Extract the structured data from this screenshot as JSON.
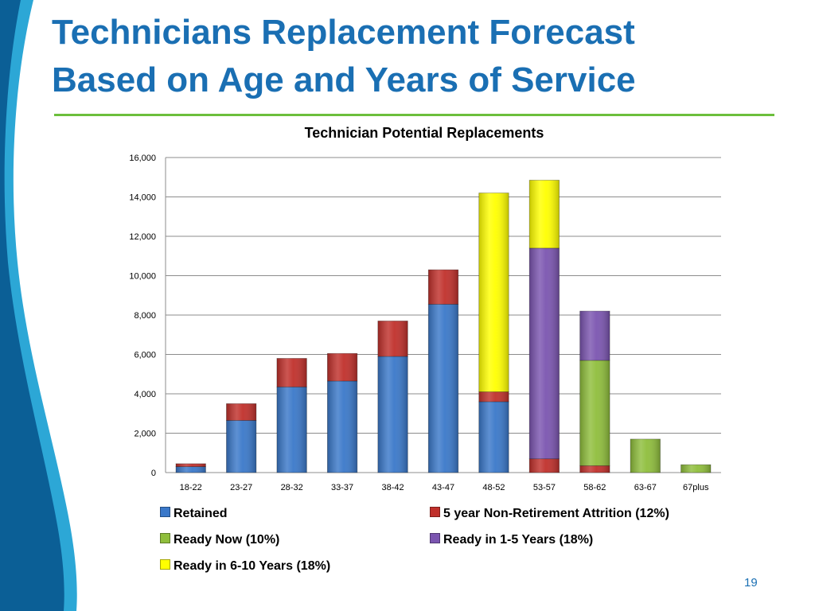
{
  "slide": {
    "title_line1": "Technicians Replacement Forecast",
    "title_line2": "Based on Age and Years of Service",
    "page_number": "19",
    "colors": {
      "title": "#1a6fb3",
      "rule": "#6cbf3c",
      "wave_dark": "#0b5f96",
      "wave_light": "#2ca7d6"
    }
  },
  "chart_data": {
    "type": "bar",
    "stacked": true,
    "title": "Technician Potential Replacements",
    "xlabel": "",
    "ylabel": "",
    "ylim": [
      0,
      16000
    ],
    "yticks": [
      0,
      2000,
      4000,
      6000,
      8000,
      10000,
      12000,
      14000,
      16000
    ],
    "ytick_labels": [
      "0",
      "2,000",
      "4,000",
      "6,000",
      "8,000",
      "10,000",
      "12,000",
      "14,000",
      "16,000"
    ],
    "grid": true,
    "legend_position": "bottom",
    "categories": [
      "18-22",
      "23-27",
      "28-32",
      "33-37",
      "38-42",
      "43-47",
      "48-52",
      "53-57",
      "58-62",
      "63-67",
      "67plus"
    ],
    "series": [
      {
        "name": "Retained",
        "color": "#3a78c9",
        "values": [
          300,
          2650,
          4350,
          4650,
          5900,
          8550,
          3600,
          0,
          0,
          0,
          0
        ]
      },
      {
        "name": "5 year Non-Retirement Attrition (12%)",
        "color": "#c0302b",
        "values": [
          150,
          850,
          1450,
          1400,
          1800,
          1750,
          500,
          700,
          350,
          0,
          0
        ]
      },
      {
        "name": "Ready Now (10%)",
        "color": "#8fbe3c",
        "values": [
          0,
          0,
          0,
          0,
          0,
          0,
          0,
          0,
          5350,
          1700,
          400
        ]
      },
      {
        "name": "Ready in 1-5 Years (18%)",
        "color": "#7b55b0",
        "values": [
          0,
          0,
          0,
          0,
          0,
          0,
          0,
          10700,
          2500,
          0,
          0
        ]
      },
      {
        "name": "Ready in 6-10 Years (18%)",
        "color": "#ffff00",
        "values": [
          0,
          0,
          0,
          0,
          0,
          0,
          10100,
          3450,
          0,
          0,
          0
        ]
      }
    ]
  }
}
